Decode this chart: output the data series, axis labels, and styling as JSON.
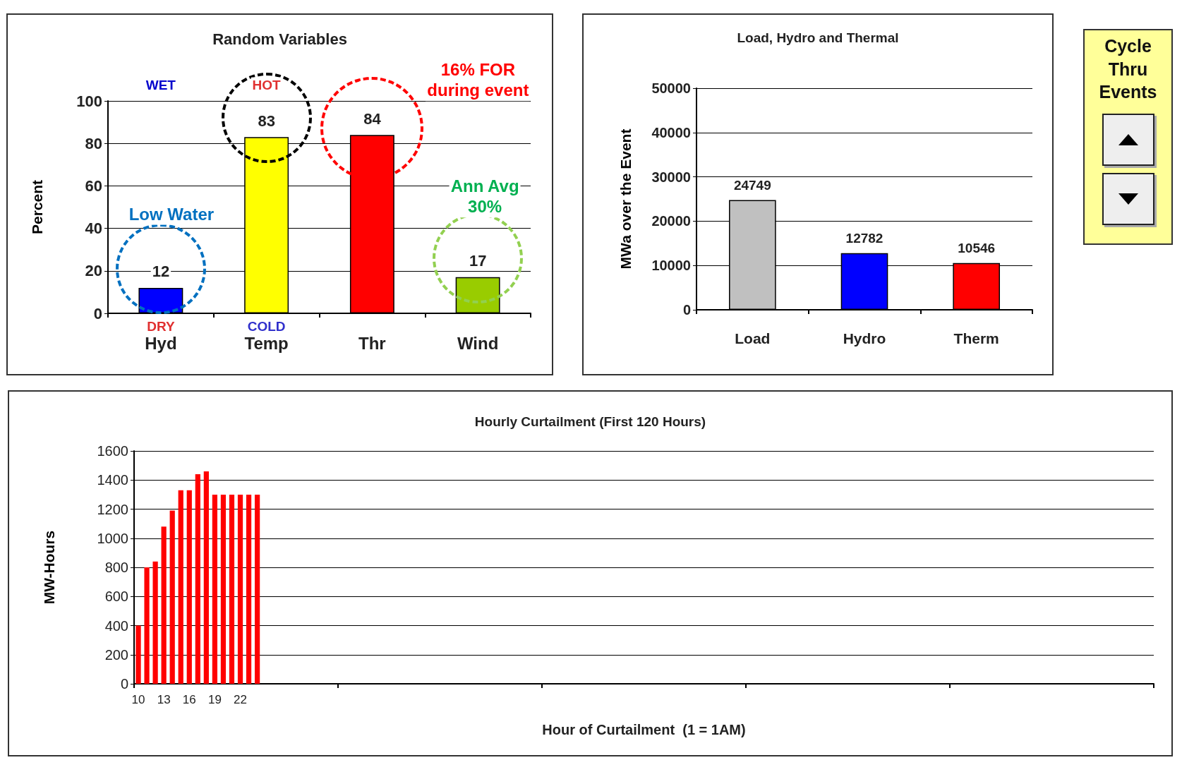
{
  "chart_data": [
    {
      "type": "bar",
      "title": "Random Variables",
      "ylabel": "Percent",
      "categories": [
        "Hyd",
        "Temp",
        "Thr",
        "Wind"
      ],
      "values": [
        12,
        83,
        84,
        17
      ],
      "colors": [
        "#0000ff",
        "#ffff00",
        "#ff0000",
        "#99cc00"
      ],
      "ylim": [
        0,
        100
      ],
      "yticks": [
        0,
        20,
        40,
        60,
        80,
        100
      ],
      "grid": "y",
      "data_labels": true,
      "annotations": [
        "WET",
        "HOT",
        "DRY",
        "COLD",
        "Low Water",
        "16% FOR\nduring event",
        "Ann Avg\n30%"
      ]
    },
    {
      "type": "bar",
      "title": "Load, Hydro and Thermal",
      "ylabel": "MWa over the Event",
      "categories": [
        "Load",
        "Hydro",
        "Therm"
      ],
      "values": [
        24749,
        12782,
        10546
      ],
      "colors": [
        "#c0c0c0",
        "#0000ff",
        "#ff0000"
      ],
      "ylim": [
        0,
        50000
      ],
      "yticks": [
        0,
        10000,
        20000,
        30000,
        40000,
        50000
      ],
      "grid": "y",
      "data_labels": true
    },
    {
      "type": "other",
      "title": "Cycle Thru Events"
    },
    {
      "type": "bar",
      "title": "Hourly Curtailment (First 120 Hours)",
      "xlabel": "Hour of Curtailment  (1 = 1AM)",
      "ylabel": "MW-Hours",
      "color": "#ff0000",
      "ylim": [
        0,
        1600
      ],
      "yticks": [
        0,
        200,
        400,
        600,
        800,
        1000,
        1200,
        1400,
        1600
      ],
      "grid": "y",
      "categories": [
        "10",
        null,
        null,
        "13",
        null,
        null,
        "16",
        null,
        null,
        "19",
        null,
        null,
        "22",
        null,
        null,
        null,
        null,
        null,
        null,
        null,
        null,
        null,
        null,
        null,
        null,
        null,
        null,
        null,
        null,
        null,
        null,
        null,
        null,
        null,
        null,
        null,
        null,
        null,
        null,
        null,
        null,
        null,
        null,
        null,
        null,
        null,
        null,
        null,
        null,
        null,
        null,
        null,
        null,
        null,
        null,
        null,
        null,
        null,
        null,
        null,
        null,
        null,
        null,
        null,
        null,
        null,
        null,
        null,
        null,
        null,
        null,
        null,
        null,
        null,
        null,
        null,
        null,
        null,
        null,
        null,
        null,
        null,
        null,
        null,
        null,
        null,
        null,
        null,
        null,
        null,
        null,
        null,
        null,
        null,
        null,
        null,
        null,
        null,
        null,
        null,
        null,
        null,
        null,
        null,
        null,
        null,
        null,
        null,
        null,
        null,
        null,
        null,
        null,
        null,
        null,
        null,
        null,
        null,
        null,
        null
      ],
      "values": [
        400,
        800,
        840,
        1080,
        1190,
        1330,
        1330,
        1440,
        1460,
        1300,
        1300,
        1300,
        1300,
        1300,
        1300,
        null,
        null,
        null,
        null,
        null,
        null,
        null,
        null,
        null,
        null,
        null,
        null,
        null,
        null,
        null,
        null,
        null,
        null,
        null,
        null,
        null,
        null,
        null,
        null,
        null,
        null,
        null,
        null,
        null,
        null,
        null,
        null,
        null,
        null,
        null,
        null,
        null,
        null,
        null,
        null,
        null,
        null,
        null,
        null,
        null,
        null,
        null,
        null,
        null,
        null,
        null,
        null,
        null,
        null,
        null,
        null,
        null,
        null,
        null,
        null,
        null,
        null,
        null,
        null,
        null,
        null,
        null,
        null,
        null,
        null,
        null,
        null,
        null,
        null,
        null,
        null,
        null,
        null,
        null,
        null,
        null,
        null,
        null,
        null,
        null,
        null,
        null,
        null,
        null,
        null,
        null,
        null,
        null,
        null,
        null,
        null,
        null,
        null,
        null,
        null,
        null,
        null,
        null,
        null,
        null
      ]
    }
  ]
}
